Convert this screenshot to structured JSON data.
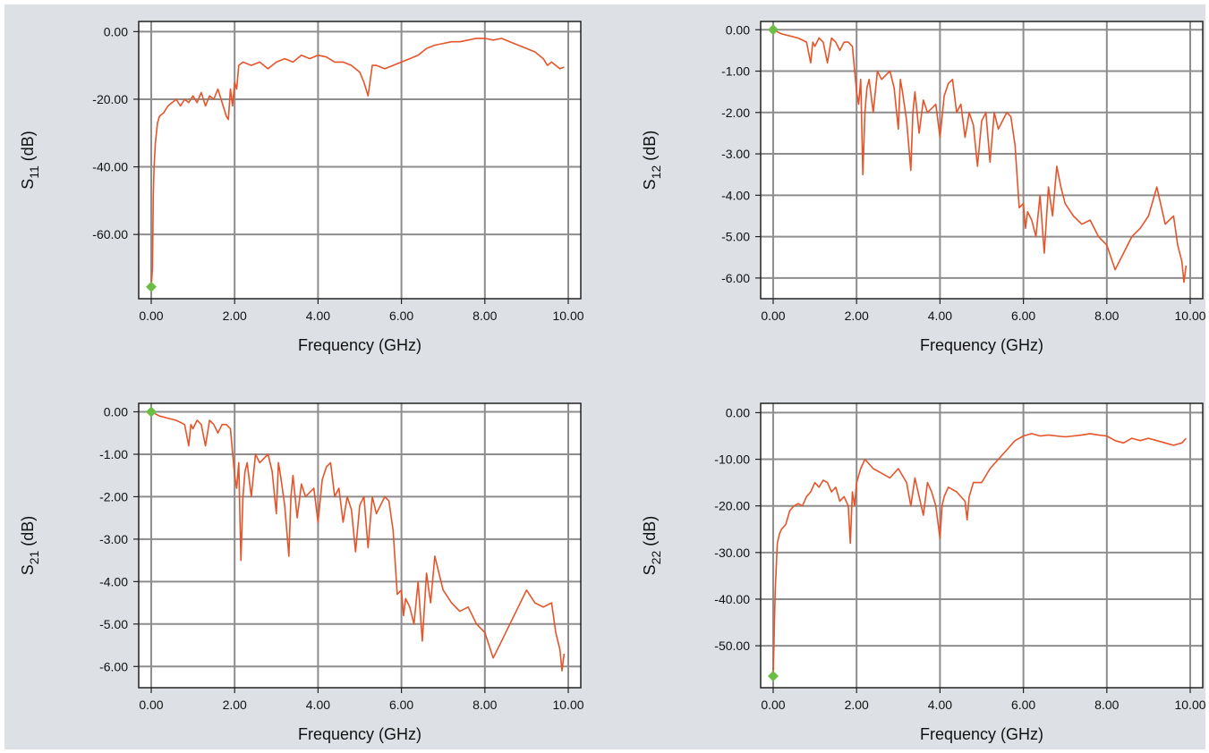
{
  "colors": {
    "background": "#dde1e5",
    "plot_area": "#ffffff",
    "grid": "#8d8d8d",
    "trace": "#e6542a",
    "marker": "#6cbd45"
  },
  "chart_data": [
    {
      "type": "line",
      "panel": "top-left",
      "xlabel": "Frequency (GHz)",
      "ylabel": {
        "base": "S",
        "sub": "11",
        "suffix": " (dB)"
      },
      "xlim": [
        -0.3,
        10.3
      ],
      "ylim": [
        -79,
        3
      ],
      "xticks": [
        0,
        2,
        4,
        6,
        8,
        10
      ],
      "xtick_labels": [
        "0.00",
        "2.00",
        "4.00",
        "6.00",
        "8.00",
        "10.00"
      ],
      "yticks": [
        0,
        -20,
        -40,
        -60
      ],
      "ytick_labels": [
        "0.00",
        "-20.00",
        "-40.00",
        "-60.00"
      ],
      "grid": true,
      "marker": {
        "x": 0.0,
        "y": -75.5
      },
      "series": [
        {
          "x": [
            0.0,
            0.03,
            0.05,
            0.07,
            0.1,
            0.15,
            0.2,
            0.3,
            0.4,
            0.5,
            0.6,
            0.7,
            0.8,
            0.9,
            1.0,
            1.1,
            1.2,
            1.3,
            1.4,
            1.5,
            1.6,
            1.7,
            1.8,
            1.85,
            1.9,
            1.95,
            2.0,
            2.05,
            2.1,
            2.2,
            2.4,
            2.6,
            2.8,
            3.0,
            3.2,
            3.4,
            3.6,
            3.8,
            4.0,
            4.2,
            4.4,
            4.6,
            4.8,
            5.0,
            5.1,
            5.2,
            5.3,
            5.4,
            5.6,
            5.8,
            6.0,
            6.2,
            6.4,
            6.6,
            6.8,
            7.0,
            7.2,
            7.4,
            7.6,
            7.8,
            8.0,
            8.2,
            8.4,
            8.6,
            8.8,
            9.0,
            9.2,
            9.4,
            9.5,
            9.6,
            9.7,
            9.8,
            9.9
          ],
          "y": [
            -75.5,
            -70,
            -48,
            -40,
            -33,
            -27,
            -25,
            -24,
            -22,
            -21,
            -20,
            -22,
            -20,
            -21,
            -19,
            -21,
            -18,
            -22,
            -19,
            -20,
            -17,
            -21,
            -25,
            -26,
            -17,
            -22,
            -15,
            -17,
            -10,
            -9,
            -10,
            -9,
            -11,
            -9,
            -8,
            -9,
            -7,
            -8,
            -7,
            -7.5,
            -9,
            -9,
            -10,
            -12,
            -15,
            -19,
            -10,
            -10,
            -11,
            -10,
            -9,
            -8,
            -7,
            -5,
            -4,
            -3.5,
            -3,
            -3,
            -2.5,
            -2,
            -2,
            -2.5,
            -2,
            -3,
            -4,
            -5,
            -6,
            -8,
            -10,
            -9,
            -10,
            -11,
            -10.5
          ]
        }
      ]
    },
    {
      "type": "line",
      "panel": "top-right",
      "xlabel": "Frequency (GHz)",
      "ylabel": {
        "base": "S",
        "sub": "12",
        "suffix": " (dB)"
      },
      "xlim": [
        -0.3,
        10.3
      ],
      "ylim": [
        -6.5,
        0.2
      ],
      "xticks": [
        0,
        2,
        4,
        6,
        8,
        10
      ],
      "xtick_labels": [
        "0.00",
        "2.00",
        "4.00",
        "6.00",
        "8.00",
        "10.00"
      ],
      "yticks": [
        0,
        -1,
        -2,
        -3,
        -4,
        -5,
        -6
      ],
      "ytick_labels": [
        "0.00",
        "-1.00",
        "-2.00",
        "-3.00",
        "-4.00",
        "-5.00",
        "-6.00"
      ],
      "grid": true,
      "marker": {
        "x": 0.0,
        "y": 0.0
      },
      "series": [
        {
          "x": [
            0.0,
            0.2,
            0.4,
            0.6,
            0.8,
            0.9,
            0.95,
            1.0,
            1.1,
            1.2,
            1.3,
            1.4,
            1.5,
            1.6,
            1.7,
            1.8,
            1.9,
            2.0,
            2.05,
            2.1,
            2.15,
            2.2,
            2.25,
            2.3,
            2.4,
            2.5,
            2.6,
            2.7,
            2.8,
            2.9,
            3.0,
            3.05,
            3.1,
            3.2,
            3.3,
            3.35,
            3.4,
            3.5,
            3.6,
            3.7,
            3.8,
            3.9,
            4.0,
            4.1,
            4.2,
            4.3,
            4.4,
            4.5,
            4.6,
            4.7,
            4.8,
            4.9,
            5.0,
            5.1,
            5.2,
            5.3,
            5.4,
            5.5,
            5.6,
            5.7,
            5.8,
            5.9,
            6.0,
            6.05,
            6.1,
            6.2,
            6.3,
            6.4,
            6.5,
            6.6,
            6.7,
            6.8,
            6.9,
            7.0,
            7.2,
            7.4,
            7.6,
            7.8,
            8.0,
            8.2,
            8.4,
            8.6,
            8.8,
            9.0,
            9.2,
            9.4,
            9.6,
            9.7,
            9.8,
            9.85,
            9.9
          ],
          "y": [
            0.0,
            -0.1,
            -0.15,
            -0.2,
            -0.3,
            -0.8,
            -0.3,
            -0.4,
            -0.2,
            -0.3,
            -0.8,
            -0.2,
            -0.3,
            -0.5,
            -0.3,
            -0.3,
            -0.4,
            -1.5,
            -1.8,
            -1.2,
            -3.5,
            -2.0,
            -1.4,
            -1.2,
            -2.0,
            -1.0,
            -1.2,
            -1.1,
            -1.0,
            -1.4,
            -2.4,
            -1.2,
            -1.5,
            -2.2,
            -3.4,
            -2.0,
            -1.5,
            -2.5,
            -1.7,
            -2.0,
            -1.9,
            -1.8,
            -2.6,
            -1.6,
            -1.3,
            -1.2,
            -2.0,
            -1.8,
            -2.6,
            -2.0,
            -2.3,
            -3.3,
            -2.2,
            -2.0,
            -3.2,
            -2.0,
            -2.4,
            -2.2,
            -2.0,
            -2.1,
            -2.8,
            -4.3,
            -4.2,
            -4.8,
            -4.4,
            -4.6,
            -5.0,
            -4.0,
            -5.4,
            -3.8,
            -4.5,
            -3.3,
            -3.8,
            -4.2,
            -4.5,
            -4.7,
            -4.6,
            -5.0,
            -5.2,
            -5.8,
            -5.4,
            -5.0,
            -4.8,
            -4.5,
            -3.8,
            -4.7,
            -4.5,
            -5.2,
            -5.6,
            -6.1,
            -5.7
          ]
        }
      ]
    },
    {
      "type": "line",
      "panel": "bottom-left",
      "xlabel": "Frequency (GHz)",
      "ylabel": {
        "base": "S",
        "sub": "21",
        "suffix": " (dB)"
      },
      "xlim": [
        -0.3,
        10.3
      ],
      "ylim": [
        -6.5,
        0.2
      ],
      "xticks": [
        0,
        2,
        4,
        6,
        8,
        10
      ],
      "xtick_labels": [
        "0.00",
        "2.00",
        "4.00",
        "6.00",
        "8.00",
        "10.00"
      ],
      "yticks": [
        0,
        -1,
        -2,
        -3,
        -4,
        -5,
        -6
      ],
      "ytick_labels": [
        "0.00",
        "-1.00",
        "-2.00",
        "-3.00",
        "-4.00",
        "-5.00",
        "-6.00"
      ],
      "grid": true,
      "marker": {
        "x": 0.0,
        "y": 0.0
      },
      "series": [
        {
          "x": [
            0.0,
            0.2,
            0.4,
            0.6,
            0.8,
            0.9,
            0.95,
            1.0,
            1.1,
            1.2,
            1.3,
            1.4,
            1.5,
            1.6,
            1.7,
            1.8,
            1.9,
            2.0,
            2.05,
            2.1,
            2.15,
            2.2,
            2.25,
            2.3,
            2.4,
            2.5,
            2.6,
            2.7,
            2.8,
            2.9,
            3.0,
            3.05,
            3.1,
            3.2,
            3.3,
            3.35,
            3.4,
            3.5,
            3.6,
            3.7,
            3.8,
            3.9,
            4.0,
            4.1,
            4.2,
            4.3,
            4.4,
            4.5,
            4.6,
            4.7,
            4.8,
            4.9,
            5.0,
            5.1,
            5.2,
            5.3,
            5.4,
            5.5,
            5.6,
            5.7,
            5.8,
            5.9,
            6.0,
            6.05,
            6.1,
            6.2,
            6.3,
            6.4,
            6.5,
            6.6,
            6.7,
            6.8,
            6.9,
            7.0,
            7.2,
            7.4,
            7.6,
            7.8,
            8.0,
            8.2,
            8.4,
            8.6,
            8.8,
            9.0,
            9.2,
            9.4,
            9.6,
            9.7,
            9.8,
            9.85,
            9.9
          ],
          "y": [
            0.0,
            -0.1,
            -0.15,
            -0.2,
            -0.3,
            -0.8,
            -0.3,
            -0.4,
            -0.2,
            -0.3,
            -0.8,
            -0.2,
            -0.3,
            -0.5,
            -0.3,
            -0.3,
            -0.4,
            -1.5,
            -1.8,
            -1.2,
            -3.5,
            -2.0,
            -1.4,
            -1.2,
            -2.0,
            -1.0,
            -1.2,
            -1.1,
            -1.0,
            -1.4,
            -2.4,
            -1.2,
            -1.5,
            -2.2,
            -3.4,
            -2.0,
            -1.5,
            -2.5,
            -1.7,
            -2.0,
            -1.9,
            -1.8,
            -2.6,
            -1.6,
            -1.3,
            -1.2,
            -2.0,
            -1.8,
            -2.6,
            -2.0,
            -2.3,
            -3.3,
            -2.2,
            -2.0,
            -3.2,
            -2.0,
            -2.4,
            -2.2,
            -2.0,
            -2.1,
            -2.8,
            -4.3,
            -4.2,
            -4.8,
            -4.4,
            -4.6,
            -5.0,
            -4.0,
            -5.4,
            -3.8,
            -4.5,
            -3.4,
            -3.8,
            -4.2,
            -4.5,
            -4.7,
            -4.6,
            -5.0,
            -5.2,
            -5.8,
            -5.4,
            -5.0,
            -4.6,
            -4.2,
            -4.5,
            -4.6,
            -4.5,
            -5.2,
            -5.6,
            -6.1,
            -5.7
          ]
        }
      ]
    },
    {
      "type": "line",
      "panel": "bottom-right",
      "xlabel": "Frequency (GHz)",
      "ylabel": {
        "base": "S",
        "sub": "22",
        "suffix": " (dB)"
      },
      "xlim": [
        -0.3,
        10.3
      ],
      "ylim": [
        -59,
        2
      ],
      "xticks": [
        0,
        2,
        4,
        6,
        8,
        10
      ],
      "xtick_labels": [
        "0.00",
        "2.00",
        "4.00",
        "6.00",
        "8.00",
        "10.00"
      ],
      "yticks": [
        0,
        -10,
        -20,
        -30,
        -40,
        -50
      ],
      "ytick_labels": [
        "0.00",
        "-10.00",
        "-20.00",
        "-30.00",
        "-40.00",
        "-50.00"
      ],
      "grid": true,
      "marker": {
        "x": 0.0,
        "y": -56.5
      },
      "series": [
        {
          "x": [
            0.0,
            0.03,
            0.05,
            0.08,
            0.1,
            0.15,
            0.2,
            0.3,
            0.4,
            0.5,
            0.6,
            0.7,
            0.8,
            0.9,
            1.0,
            1.1,
            1.2,
            1.3,
            1.4,
            1.5,
            1.6,
            1.7,
            1.8,
            1.85,
            1.9,
            1.95,
            2.0,
            2.1,
            2.2,
            2.4,
            2.6,
            2.8,
            3.0,
            3.2,
            3.3,
            3.4,
            3.5,
            3.6,
            3.7,
            3.8,
            3.9,
            4.0,
            4.05,
            4.1,
            4.2,
            4.4,
            4.6,
            4.65,
            4.7,
            4.8,
            5.0,
            5.2,
            5.4,
            5.6,
            5.8,
            6.0,
            6.2,
            6.4,
            6.6,
            6.8,
            7.0,
            7.2,
            7.4,
            7.6,
            7.8,
            8.0,
            8.2,
            8.4,
            8.6,
            8.8,
            9.0,
            9.2,
            9.4,
            9.6,
            9.8,
            9.9
          ],
          "y": [
            -56.5,
            -45,
            -38,
            -32,
            -28,
            -26,
            -25,
            -24,
            -21,
            -20,
            -19.5,
            -20,
            -18,
            -17,
            -15,
            -16,
            -14.5,
            -15,
            -17,
            -16,
            -19,
            -18,
            -20,
            -28,
            -17,
            -20,
            -15,
            -12,
            -10,
            -12,
            -13,
            -14,
            -12,
            -15,
            -20,
            -14,
            -18,
            -22,
            -15,
            -17,
            -20,
            -27,
            -20,
            -18,
            -16,
            -17,
            -19,
            -23,
            -18,
            -15,
            -15,
            -12,
            -10,
            -8,
            -6,
            -5,
            -4.5,
            -5,
            -4.8,
            -5,
            -5.2,
            -5,
            -4.8,
            -4.5,
            -4.8,
            -5,
            -6,
            -6.5,
            -5.5,
            -6,
            -5.5,
            -6,
            -6.5,
            -7,
            -6.5,
            -5.5
          ]
        }
      ]
    }
  ]
}
